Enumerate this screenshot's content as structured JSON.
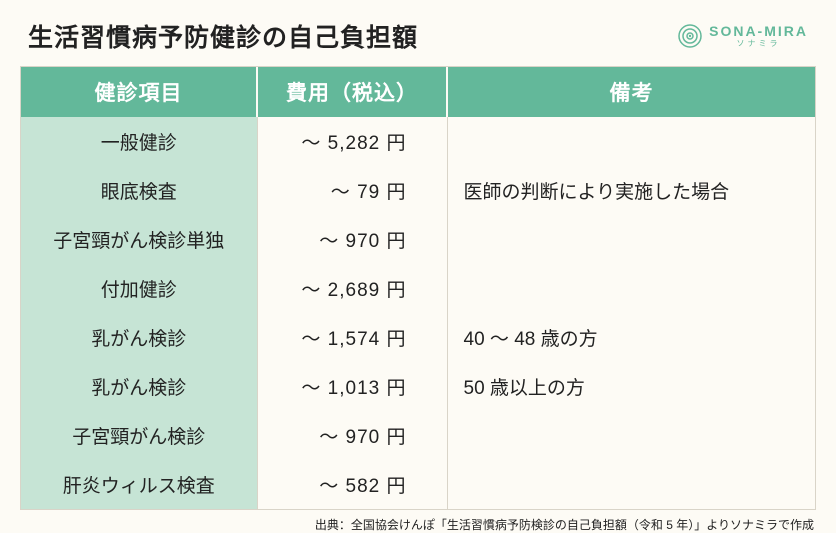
{
  "title": "生活習慣病予防健診の自己負担額",
  "logo": {
    "text": "SONA-MIRA",
    "sub": "ソナミラ"
  },
  "table": {
    "headers": {
      "item": "健診項目",
      "cost": "費用（税込）",
      "note": "備考"
    },
    "rows": [
      {
        "item": "一般健診",
        "cost": "～ 5,282 円",
        "note": ""
      },
      {
        "item": "眼底検査",
        "cost": "～ 79 円",
        "note": "医師の判断により実施した場合"
      },
      {
        "item": "子宮頸がん検診単独",
        "cost": "～ 970 円",
        "note": ""
      },
      {
        "item": "付加健診",
        "cost": "～ 2,689 円",
        "note": ""
      },
      {
        "item": "乳がん検診",
        "cost": "～ 1,574 円",
        "note": "40 ～ 48 歳の方"
      },
      {
        "item": "乳がん検診",
        "cost": "～ 1,013 円",
        "note": "50 歳以上の方"
      },
      {
        "item": "子宮頸がん検診",
        "cost": "～ 970 円",
        "note": ""
      },
      {
        "item": "肝炎ウィルス検査",
        "cost": "～ 582 円",
        "note": ""
      }
    ]
  },
  "source": "出典：全国協会けんぽ「生活習慣病予防検診の自己負担額（令和 5 年）」よりソナミラで作成",
  "colors": {
    "header_bg": "#63b89a",
    "item_bg": "#c6e4d5",
    "page_bg": "#fdfbf5",
    "border": "#d9d4c8",
    "text": "#222222"
  }
}
